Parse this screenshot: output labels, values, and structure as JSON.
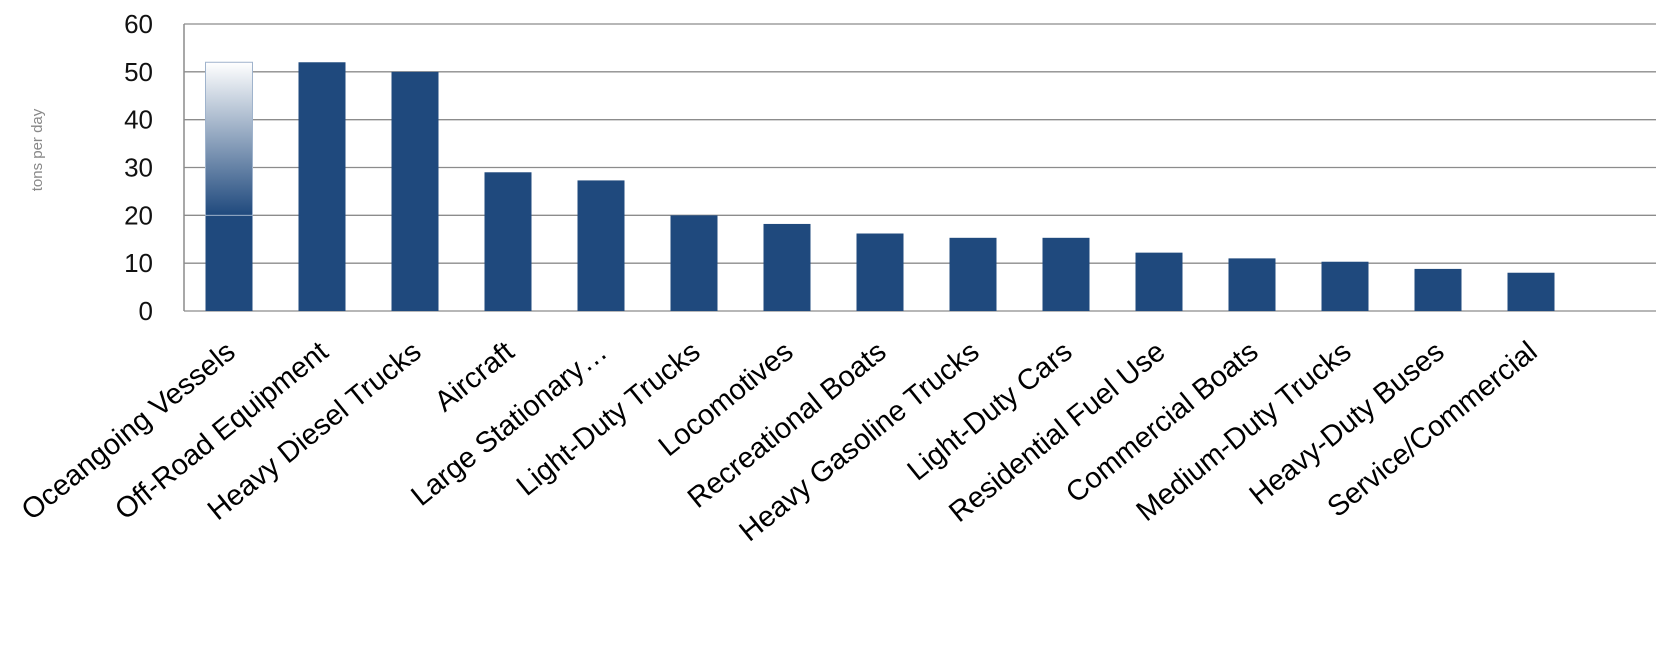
{
  "chart_data": {
    "type": "bar",
    "title": "",
    "xlabel": "",
    "ylabel": "tons per day",
    "ylim": [
      0,
      60
    ],
    "yticks": [
      0,
      10,
      20,
      30,
      40,
      50,
      60
    ],
    "grid": true,
    "legend": "none",
    "categories": [
      "Oceangoing Vessels",
      "Off-Road Equipment",
      "Heavy Diesel Trucks",
      "Aircraft",
      "Large Stationary…",
      "Light-Duty Trucks",
      "Locomotives",
      "Recreational Boats",
      "Heavy Gasoline Trucks",
      "Light-Duty Cars",
      "Residential Fuel Use",
      "Commercial Boats",
      "Medium-Duty Trucks",
      "Heavy-Duty Buses",
      "Service/Commercial"
    ],
    "values": [
      52,
      52,
      50,
      29,
      27.3,
      20,
      18.2,
      16.2,
      15.3,
      15.3,
      12.2,
      11,
      10.3,
      8.8,
      8
    ],
    "highlight": {
      "index": 0,
      "solid_value": 20
    },
    "colors": {
      "bar": "#1F497D",
      "grid": "#8C8C8C",
      "axis": "#8C8C8C"
    }
  }
}
